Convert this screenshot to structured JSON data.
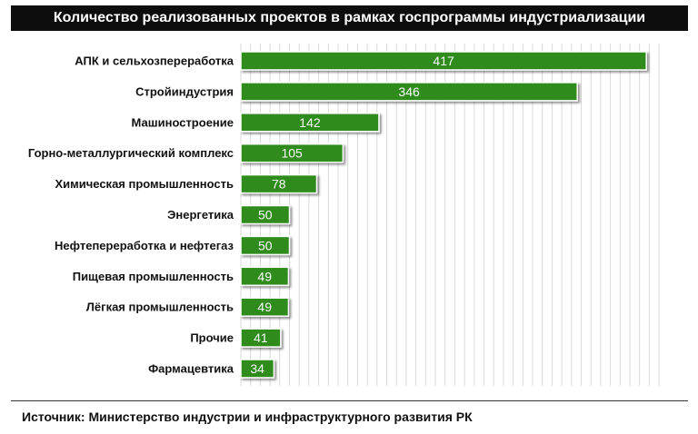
{
  "title": "Количество реализованных проектов в рамках госпрограммы индустриализации",
  "source": "Источник: Министерство индустрии и инфраструктурного развития РК",
  "colors": {
    "bar": "#2e8b1e",
    "bar_dark": "#1f6a12",
    "title_bg": "#0d0d0d",
    "grid": "#d9d9d9"
  },
  "chart_data": {
    "type": "bar",
    "orientation": "horizontal",
    "categories": [
      "АПК и сельхозпереработка",
      "Стройиндустрия",
      "Машиностроение",
      "Горно-металлургический комплекс",
      "Химическая промышленность",
      "Энергетика",
      "Нефтепереработка и нефтегаз",
      "Пищевая промышленность",
      "Лёгкая промышленность",
      "Прочие",
      "Фармацевтика"
    ],
    "values": [
      417,
      346,
      142,
      105,
      78,
      50,
      50,
      49,
      49,
      41,
      34
    ],
    "xlim": [
      0,
      430
    ],
    "grid": true,
    "legend": "none"
  }
}
